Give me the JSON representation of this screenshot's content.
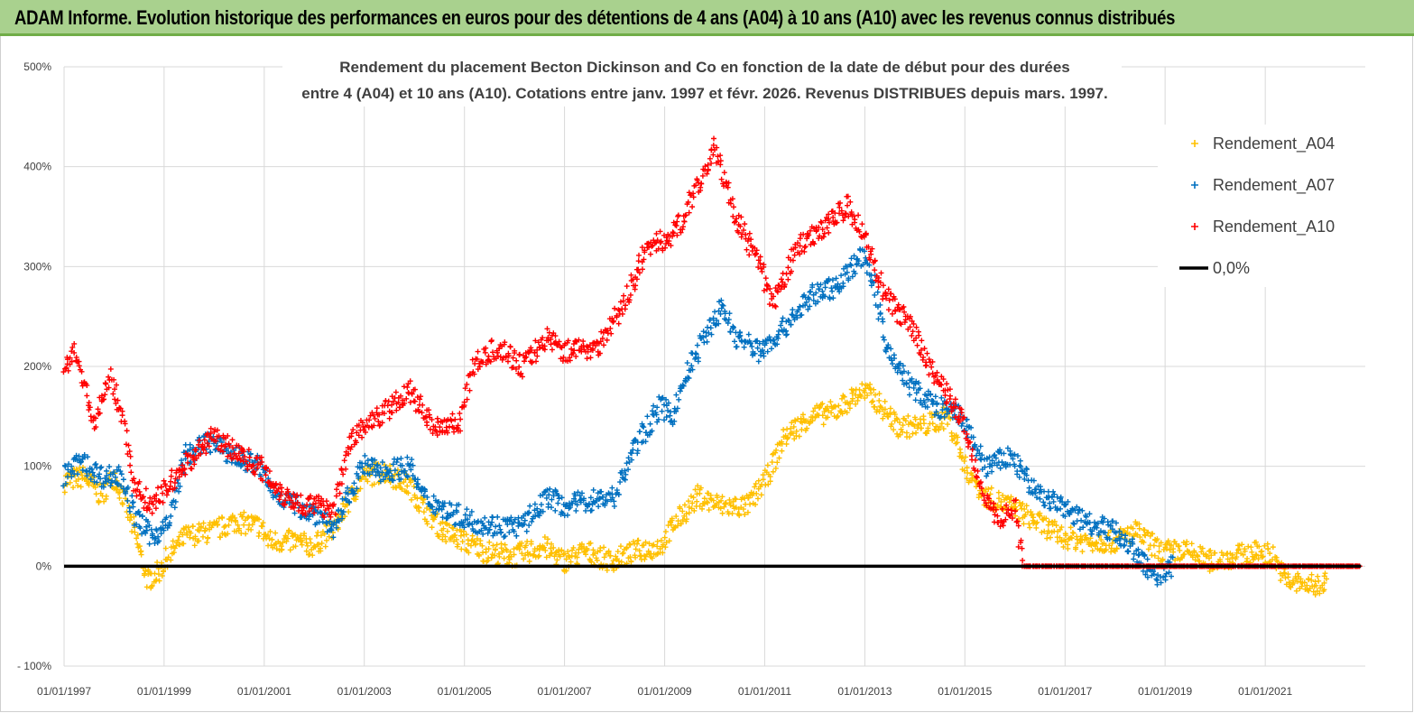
{
  "banner": {
    "title": "ADAM Informe. Evolution historique des performances en euros pour des détentions de 4 ans (A04) à 10 ans (A10) avec les revenus connus distribués"
  },
  "chart_data": {
    "type": "scatter",
    "subtitle_line1": "Rendement du placement Becton Dickinson and Co en fonction de la date de début pour des durées",
    "subtitle_line2": "entre 4 (A04) et 10 ans (A10). Cotations entre janv. 1997 et févr. 2026. Revenus DISTRIBUES depuis mars. 1997.",
    "xlim": [
      "1997-01-01",
      "2023-01-01"
    ],
    "ylim": [
      -100,
      500
    ],
    "y_ticks": [
      "- 100%",
      "0%",
      "100%",
      "200%",
      "300%",
      "400%",
      "500%"
    ],
    "x_ticks": [
      "01/01/1997",
      "01/01/1999",
      "01/01/2001",
      "01/01/2003",
      "01/01/2005",
      "01/01/2007",
      "01/01/2009",
      "01/01/2011",
      "01/01/2013",
      "01/01/2015",
      "01/01/2017",
      "01/01/2019",
      "01/01/2021"
    ],
    "grid": true,
    "legend_placement": "top-right",
    "series": [
      {
        "name": "Rendement_A04",
        "color": "#ffc000",
        "marker": "+",
        "points": [
          [
            "1997-01-01",
            85
          ],
          [
            "1997-06-01",
            90
          ],
          [
            "1997-10-01",
            70
          ],
          [
            "1998-01-01",
            90
          ],
          [
            "1998-04-01",
            60
          ],
          [
            "1998-07-01",
            20
          ],
          [
            "1998-09-01",
            -15
          ],
          [
            "1998-12-01",
            -5
          ],
          [
            "1999-02-01",
            10
          ],
          [
            "1999-06-01",
            30
          ],
          [
            "2000-01-01",
            35
          ],
          [
            "2000-06-01",
            45
          ],
          [
            "2000-12-01",
            40
          ],
          [
            "2001-02-01",
            25
          ],
          [
            "2001-08-01",
            25
          ],
          [
            "2002-01-01",
            20
          ],
          [
            "2002-06-01",
            40
          ],
          [
            "2002-10-01",
            70
          ],
          [
            "2003-01-01",
            90
          ],
          [
            "2003-06-01",
            95
          ],
          [
            "2003-12-01",
            80
          ],
          [
            "2004-03-01",
            60
          ],
          [
            "2004-08-01",
            35
          ],
          [
            "2005-01-01",
            25
          ],
          [
            "2005-06-01",
            15
          ],
          [
            "2006-01-01",
            10
          ],
          [
            "2006-08-01",
            20
          ],
          [
            "2007-01-01",
            5
          ],
          [
            "2007-06-01",
            15
          ],
          [
            "2007-12-01",
            5
          ],
          [
            "2008-06-01",
            15
          ],
          [
            "2008-12-01",
            20
          ],
          [
            "2009-03-01",
            40
          ],
          [
            "2009-09-01",
            70
          ],
          [
            "2010-03-01",
            60
          ],
          [
            "2010-09-01",
            60
          ],
          [
            "2011-01-01",
            85
          ],
          [
            "2011-06-01",
            130
          ],
          [
            "2011-12-01",
            150
          ],
          [
            "2012-06-01",
            155
          ],
          [
            "2012-12-01",
            175
          ],
          [
            "2013-03-01",
            170
          ],
          [
            "2013-09-01",
            140
          ],
          [
            "2014-03-01",
            140
          ],
          [
            "2014-09-01",
            150
          ],
          [
            "2015-01-01",
            100
          ],
          [
            "2015-06-01",
            70
          ],
          [
            "2015-12-01",
            60
          ],
          [
            "2016-06-01",
            45
          ],
          [
            "2016-12-01",
            30
          ],
          [
            "2017-06-01",
            25
          ],
          [
            "2018-01-01",
            25
          ],
          [
            "2018-06-01",
            35
          ],
          [
            "2018-12-01",
            15
          ],
          [
            "2019-06-01",
            15
          ],
          [
            "2019-12-01",
            5
          ],
          [
            "2020-06-01",
            10
          ],
          [
            "2020-12-01",
            15
          ],
          [
            "2021-03-01",
            10
          ],
          [
            "2021-06-01",
            -15
          ],
          [
            "2022-01-01",
            -20
          ],
          [
            "2022-04-01",
            -15
          ]
        ]
      },
      {
        "name": "Rendement_A07",
        "color": "#0070c0",
        "marker": "+",
        "points": [
          [
            "1997-01-01",
            90
          ],
          [
            "1997-05-01",
            105
          ],
          [
            "1997-10-01",
            90
          ],
          [
            "1998-03-01",
            90
          ],
          [
            "1998-06-01",
            50
          ],
          [
            "1998-10-01",
            30
          ],
          [
            "1999-02-01",
            40
          ],
          [
            "1999-06-01",
            110
          ],
          [
            "1999-12-01",
            125
          ],
          [
            "2000-06-01",
            110
          ],
          [
            "2000-12-01",
            100
          ],
          [
            "2001-03-01",
            75
          ],
          [
            "2001-09-01",
            60
          ],
          [
            "2002-03-01",
            50
          ],
          [
            "2002-06-01",
            35
          ],
          [
            "2002-09-01",
            70
          ],
          [
            "2003-01-01",
            100
          ],
          [
            "2003-06-01",
            95
          ],
          [
            "2003-12-01",
            100
          ],
          [
            "2004-03-01",
            70
          ],
          [
            "2004-09-01",
            55
          ],
          [
            "2005-03-01",
            45
          ],
          [
            "2005-09-01",
            40
          ],
          [
            "2006-03-01",
            40
          ],
          [
            "2006-09-01",
            70
          ],
          [
            "2007-01-01",
            60
          ],
          [
            "2007-06-01",
            65
          ],
          [
            "2008-01-01",
            70
          ],
          [
            "2008-06-01",
            120
          ],
          [
            "2008-12-01",
            160
          ],
          [
            "2009-03-01",
            150
          ],
          [
            "2009-06-01",
            190
          ],
          [
            "2009-12-01",
            240
          ],
          [
            "2010-03-01",
            260
          ],
          [
            "2010-06-01",
            230
          ],
          [
            "2010-12-01",
            215
          ],
          [
            "2011-06-01",
            240
          ],
          [
            "2011-12-01",
            270
          ],
          [
            "2012-06-01",
            280
          ],
          [
            "2012-12-01",
            310
          ],
          [
            "2013-03-01",
            290
          ],
          [
            "2013-06-01",
            220
          ],
          [
            "2013-12-01",
            180
          ],
          [
            "2014-06-01",
            160
          ],
          [
            "2014-12-01",
            150
          ],
          [
            "2015-06-01",
            100
          ],
          [
            "2015-12-01",
            110
          ],
          [
            "2016-06-01",
            75
          ],
          [
            "2016-12-01",
            60
          ],
          [
            "2017-06-01",
            45
          ],
          [
            "2018-01-01",
            35
          ],
          [
            "2018-06-01",
            15
          ],
          [
            "2018-10-01",
            -10
          ],
          [
            "2019-01-01",
            -5
          ],
          [
            "2019-03-01",
            0
          ]
        ]
      },
      {
        "name": "Rendement_A10",
        "color": "#ff0000",
        "marker": "+",
        "points": [
          [
            "1997-01-01",
            200
          ],
          [
            "1997-04-01",
            215
          ],
          [
            "1997-08-01",
            140
          ],
          [
            "1997-12-01",
            190
          ],
          [
            "1998-03-01",
            150
          ],
          [
            "1998-06-01",
            80
          ],
          [
            "1998-10-01",
            60
          ],
          [
            "1999-02-01",
            80
          ],
          [
            "1999-08-01",
            110
          ],
          [
            "2000-01-01",
            130
          ],
          [
            "2000-06-01",
            115
          ],
          [
            "2000-12-01",
            100
          ],
          [
            "2001-06-01",
            70
          ],
          [
            "2001-12-01",
            60
          ],
          [
            "2002-06-01",
            60
          ],
          [
            "2002-09-01",
            120
          ],
          [
            "2003-01-01",
            140
          ],
          [
            "2003-06-01",
            155
          ],
          [
            "2003-12-01",
            175
          ],
          [
            "2004-06-01",
            140
          ],
          [
            "2004-12-01",
            145
          ],
          [
            "2005-03-01",
            200
          ],
          [
            "2005-09-01",
            220
          ],
          [
            "2006-03-01",
            200
          ],
          [
            "2006-09-01",
            230
          ],
          [
            "2007-01-01",
            215
          ],
          [
            "2007-09-01",
            220
          ],
          [
            "2008-03-01",
            260
          ],
          [
            "2008-09-01",
            320
          ],
          [
            "2009-03-01",
            330
          ],
          [
            "2009-09-01",
            380
          ],
          [
            "2010-01-01",
            420
          ],
          [
            "2010-06-01",
            350
          ],
          [
            "2010-12-01",
            300
          ],
          [
            "2011-03-01",
            260
          ],
          [
            "2011-09-01",
            320
          ],
          [
            "2012-03-01",
            340
          ],
          [
            "2012-09-01",
            360
          ],
          [
            "2013-01-01",
            330
          ],
          [
            "2013-06-01",
            270
          ],
          [
            "2013-12-01",
            240
          ],
          [
            "2014-06-01",
            190
          ],
          [
            "2014-12-01",
            150
          ],
          [
            "2015-03-01",
            110
          ],
          [
            "2015-06-01",
            70
          ],
          [
            "2015-09-01",
            45
          ],
          [
            "2016-01-01",
            60
          ],
          [
            "2016-03-01",
            0
          ],
          [
            "2018-01-01",
            0
          ],
          [
            "2020-01-01",
            0
          ],
          [
            "2022-12-01",
            0
          ]
        ]
      },
      {
        "name": "0,0%",
        "color": "#000000",
        "marker": "line",
        "points": [
          [
            "1997-01-01",
            0
          ],
          [
            "2022-12-01",
            0
          ]
        ]
      }
    ]
  }
}
